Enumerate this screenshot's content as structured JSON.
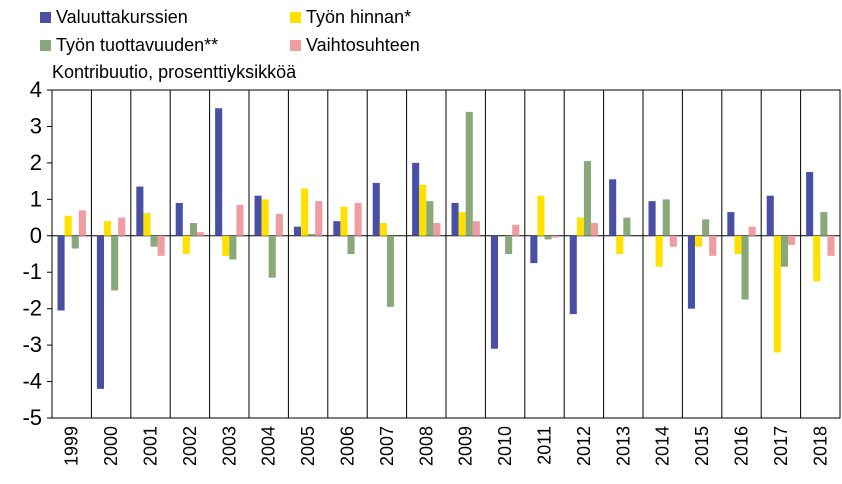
{
  "chart_data": {
    "type": "bar",
    "y_axis_label": "Kontribuutio, prosenttiyksikköä",
    "categories": [
      "1999",
      "2000",
      "2001",
      "2002",
      "2003",
      "2004",
      "2005",
      "2006",
      "2007",
      "2008",
      "2009",
      "2010",
      "2011",
      "2012",
      "2013",
      "2014",
      "2015",
      "2016",
      "2017",
      "2018"
    ],
    "series": [
      {
        "name": "Valuuttakurssien",
        "color": "#4a4fa6",
        "values": [
          -2.05,
          -4.2,
          1.35,
          0.9,
          3.5,
          1.1,
          0.25,
          0.4,
          1.45,
          2.0,
          0.9,
          -3.1,
          -0.75,
          -2.15,
          1.55,
          0.95,
          -2.0,
          0.65,
          1.1,
          1.75
        ]
      },
      {
        "name": "Työn hinnan*",
        "color": "#ffe100",
        "values": [
          0.55,
          0.4,
          0.62,
          -0.5,
          -0.55,
          1.0,
          1.3,
          0.8,
          0.35,
          1.4,
          0.65,
          0.0,
          1.1,
          0.5,
          -0.5,
          -0.85,
          -0.3,
          -0.5,
          -3.2,
          -1.25
        ]
      },
      {
        "name": "Työn tuottavuuden**",
        "color": "#8aa97a",
        "values": [
          -0.35,
          -1.5,
          -0.3,
          0.35,
          -0.65,
          -1.15,
          0.05,
          -0.5,
          -1.95,
          0.95,
          3.4,
          -0.5,
          -0.1,
          2.05,
          0.5,
          1.0,
          0.45,
          -1.75,
          -0.85,
          0.65
        ]
      },
      {
        "name": "Vaihtosuhteen",
        "color": "#ef9ca2",
        "values": [
          0.7,
          0.5,
          -0.55,
          0.1,
          0.85,
          0.6,
          0.95,
          0.9,
          0.0,
          0.35,
          0.4,
          0.3,
          -0.05,
          0.35,
          0.0,
          -0.3,
          -0.55,
          0.25,
          -0.25,
          -0.55
        ]
      }
    ],
    "ylim": [
      -5,
      4
    ],
    "yticks": [
      -5,
      -4,
      -3,
      -2,
      -1,
      0,
      1,
      2,
      3,
      4
    ],
    "category_grid": true
  }
}
